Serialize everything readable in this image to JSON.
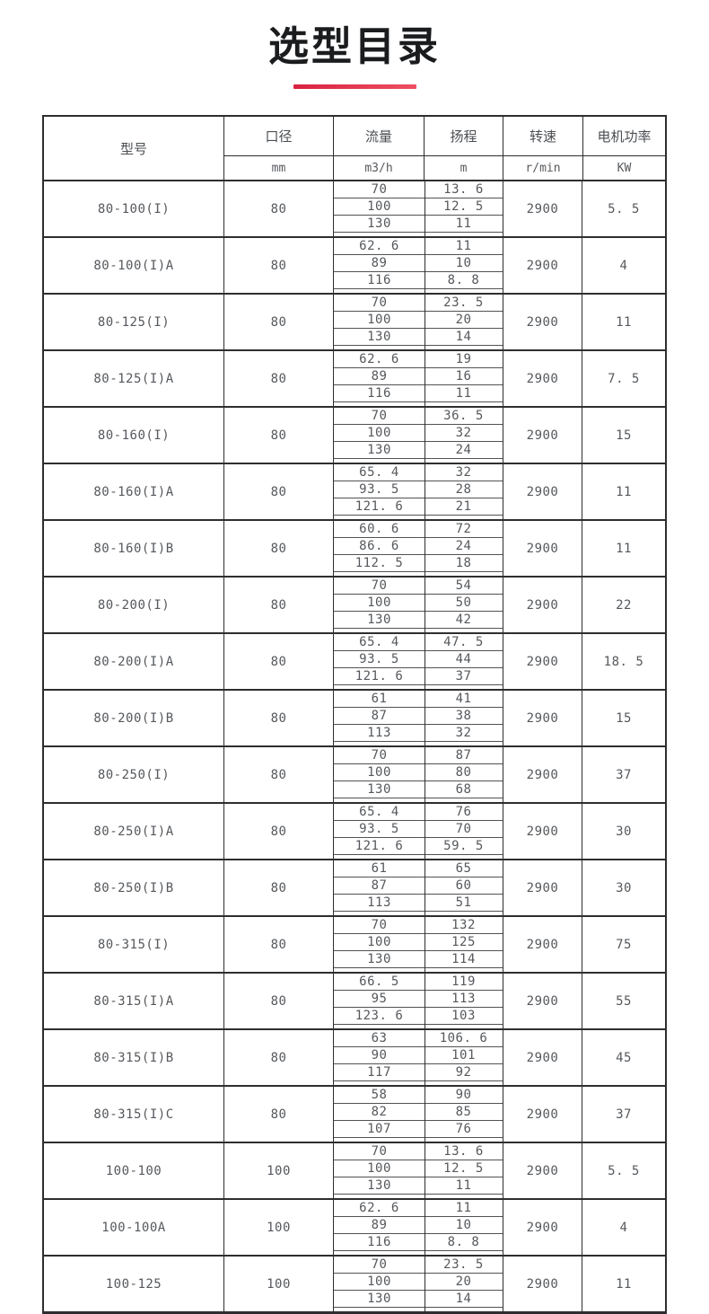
{
  "page": {
    "title": "选型目录",
    "accent_color": "#e23a4e",
    "border_color": "#2e2e2e",
    "text_color": "#55585c"
  },
  "table": {
    "headers": {
      "model": "型号",
      "diameter": "口径",
      "flow": "流量",
      "head": "扬程",
      "speed": "转速",
      "power": "电机功率"
    },
    "units": {
      "diameter": "mm",
      "flow": "m3/h",
      "head": "m",
      "speed": "r/min",
      "power": "KW"
    },
    "rows": [
      {
        "model": "80-100(I)",
        "diameter": "80",
        "points": [
          {
            "flow": "70",
            "head": "13.6"
          },
          {
            "flow": "100",
            "head": "12.5"
          },
          {
            "flow": "130",
            "head": "11"
          }
        ],
        "speed": "2900",
        "power": "5.5"
      },
      {
        "model": "80-100(I)A",
        "diameter": "80",
        "points": [
          {
            "flow": "62.6",
            "head": "11"
          },
          {
            "flow": "89",
            "head": "10"
          },
          {
            "flow": "116",
            "head": "8.8"
          }
        ],
        "speed": "2900",
        "power": "4"
      },
      {
        "model": "80-125(I)",
        "diameter": "80",
        "points": [
          {
            "flow": "70",
            "head": "23.5"
          },
          {
            "flow": "100",
            "head": "20"
          },
          {
            "flow": "130",
            "head": "14"
          }
        ],
        "speed": "2900",
        "power": "11"
      },
      {
        "model": "80-125(I)A",
        "diameter": "80",
        "points": [
          {
            "flow": "62.6",
            "head": "19"
          },
          {
            "flow": "89",
            "head": "16"
          },
          {
            "flow": "116",
            "head": "11"
          }
        ],
        "speed": "2900",
        "power": "7.5"
      },
      {
        "model": "80-160(I)",
        "diameter": "80",
        "points": [
          {
            "flow": "70",
            "head": "36.5"
          },
          {
            "flow": "100",
            "head": "32"
          },
          {
            "flow": "130",
            "head": "24"
          }
        ],
        "speed": "2900",
        "power": "15"
      },
      {
        "model": "80-160(I)A",
        "diameter": "80",
        "points": [
          {
            "flow": "65.4",
            "head": "32"
          },
          {
            "flow": "93.5",
            "head": "28"
          },
          {
            "flow": "121.6",
            "head": "21"
          }
        ],
        "speed": "2900",
        "power": "11"
      },
      {
        "model": "80-160(I)B",
        "diameter": "80",
        "points": [
          {
            "flow": "60.6",
            "head": "72"
          },
          {
            "flow": "86.6",
            "head": "24"
          },
          {
            "flow": "112.5",
            "head": "18"
          }
        ],
        "speed": "2900",
        "power": "11"
      },
      {
        "model": "80-200(I)",
        "diameter": "80",
        "points": [
          {
            "flow": "70",
            "head": "54"
          },
          {
            "flow": "100",
            "head": "50"
          },
          {
            "flow": "130",
            "head": "42"
          }
        ],
        "speed": "2900",
        "power": "22"
      },
      {
        "model": "80-200(I)A",
        "diameter": "80",
        "points": [
          {
            "flow": "65.4",
            "head": "47.5"
          },
          {
            "flow": "93.5",
            "head": "44"
          },
          {
            "flow": "121.6",
            "head": "37"
          }
        ],
        "speed": "2900",
        "power": "18.5"
      },
      {
        "model": "80-200(I)B",
        "diameter": "80",
        "points": [
          {
            "flow": "61",
            "head": "41"
          },
          {
            "flow": "87",
            "head": "38"
          },
          {
            "flow": "113",
            "head": "32"
          }
        ],
        "speed": "2900",
        "power": "15"
      },
      {
        "model": "80-250(I)",
        "diameter": "80",
        "points": [
          {
            "flow": "70",
            "head": "87"
          },
          {
            "flow": "100",
            "head": "80"
          },
          {
            "flow": "130",
            "head": "68"
          }
        ],
        "speed": "2900",
        "power": "37"
      },
      {
        "model": "80-250(I)A",
        "diameter": "80",
        "points": [
          {
            "flow": "65.4",
            "head": "76"
          },
          {
            "flow": "93.5",
            "head": "70"
          },
          {
            "flow": "121.6",
            "head": "59.5"
          }
        ],
        "speed": "2900",
        "power": "30"
      },
      {
        "model": "80-250(I)B",
        "diameter": "80",
        "points": [
          {
            "flow": "61",
            "head": "65"
          },
          {
            "flow": "87",
            "head": "60"
          },
          {
            "flow": "113",
            "head": "51"
          }
        ],
        "speed": "2900",
        "power": "30"
      },
      {
        "model": "80-315(I)",
        "diameter": "80",
        "points": [
          {
            "flow": "70",
            "head": "132"
          },
          {
            "flow": "100",
            "head": "125"
          },
          {
            "flow": "130",
            "head": "114"
          }
        ],
        "speed": "2900",
        "power": "75"
      },
      {
        "model": "80-315(I)A",
        "diameter": "80",
        "points": [
          {
            "flow": "66.5",
            "head": "119"
          },
          {
            "flow": "95",
            "head": "113"
          },
          {
            "flow": "123.6",
            "head": "103"
          }
        ],
        "speed": "2900",
        "power": "55"
      },
      {
        "model": "80-315(I)B",
        "diameter": "80",
        "points": [
          {
            "flow": "63",
            "head": "106.6"
          },
          {
            "flow": "90",
            "head": "101"
          },
          {
            "flow": "117",
            "head": "92"
          }
        ],
        "speed": "2900",
        "power": "45"
      },
      {
        "model": "80-315(I)C",
        "diameter": "80",
        "points": [
          {
            "flow": "58",
            "head": "90"
          },
          {
            "flow": "82",
            "head": "85"
          },
          {
            "flow": "107",
            "head": "76"
          }
        ],
        "speed": "2900",
        "power": "37"
      },
      {
        "model": "100-100",
        "diameter": "100",
        "points": [
          {
            "flow": "70",
            "head": "13.6"
          },
          {
            "flow": "100",
            "head": "12.5"
          },
          {
            "flow": "130",
            "head": "11"
          }
        ],
        "speed": "2900",
        "power": "5.5"
      },
      {
        "model": "100-100A",
        "diameter": "100",
        "points": [
          {
            "flow": "62.6",
            "head": "11"
          },
          {
            "flow": "89",
            "head": "10"
          },
          {
            "flow": "116",
            "head": "8.8"
          }
        ],
        "speed": "2900",
        "power": "4"
      },
      {
        "model": "100-125",
        "diameter": "100",
        "points": [
          {
            "flow": "70",
            "head": "23.5"
          },
          {
            "flow": "100",
            "head": "20"
          },
          {
            "flow": "130",
            "head": "14"
          }
        ],
        "speed": "2900",
        "power": "11"
      }
    ]
  }
}
